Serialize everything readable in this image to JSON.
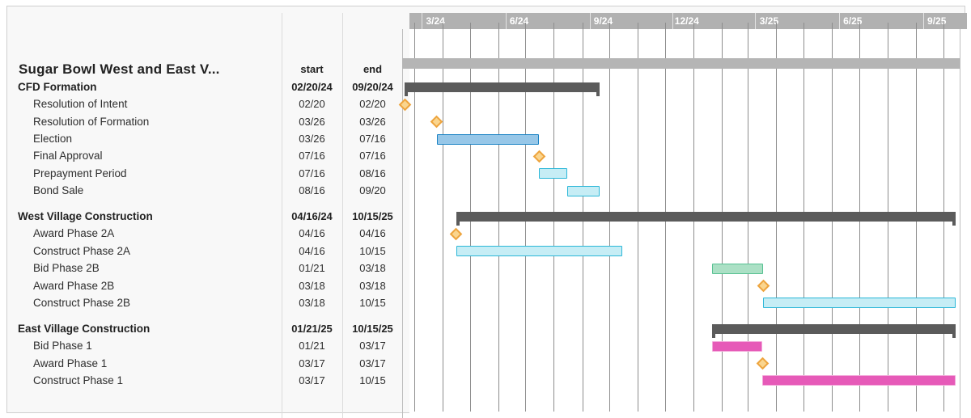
{
  "table": {
    "title": "Sugar Bowl West and East V...",
    "columns": {
      "start": "start",
      "end": "end"
    }
  },
  "colors": {
    "band": "#b1b1b1",
    "gridline": "#8d8d8d",
    "project_bar": "#b5b5b5",
    "summary_bar": "#5b5b5b",
    "milestone_fill": "#fad58e",
    "milestone_border": "#eda43e",
    "blue_fill": "#97c7e8",
    "blue_border": "#1d84c5",
    "cyan_fill": "#c6edf5",
    "cyan_border": "#2bb7d8",
    "green_fill": "#abe0c5",
    "green_border": "#57c192",
    "pink_fill": "#e65ab8",
    "pink_border": "#f3a8da"
  },
  "chart_data": {
    "type": "gantt",
    "title": "Sugar Bowl West and East V...",
    "timeline": {
      "quarter_labels": [
        "3/24",
        "6/24",
        "9/24",
        "12/24",
        "3/25",
        "6/25",
        "9/25"
      ],
      "gridlines": "monthly",
      "range": {
        "start": "2024-02-17",
        "end": "2025-10-19"
      }
    },
    "project": {
      "start_date": "2024-02-17",
      "end_date": "2025-10-19"
    },
    "sections": [
      {
        "label": "CFD Formation",
        "start": "02/20/24",
        "end": "09/20/24",
        "start_date": "2024-02-20",
        "end_date": "2024-09-20",
        "tasks": [
          {
            "label": "Resolution of Intent",
            "start": "02/20",
            "end": "02/20",
            "start_date": "2024-02-20",
            "end_date": "2024-02-20",
            "kind": "milestone"
          },
          {
            "label": "Resolution of Formation",
            "start": "03/26",
            "end": "03/26",
            "start_date": "2024-03-26",
            "end_date": "2024-03-26",
            "kind": "milestone"
          },
          {
            "label": "Election",
            "start": "03/26",
            "end": "07/16",
            "start_date": "2024-03-26",
            "end_date": "2024-07-16",
            "kind": "bar",
            "color": "blue"
          },
          {
            "label": "Final Approval",
            "start": "07/16",
            "end": "07/16",
            "start_date": "2024-07-16",
            "end_date": "2024-07-16",
            "kind": "milestone"
          },
          {
            "label": "Prepayment Period",
            "start": "07/16",
            "end": "08/16",
            "start_date": "2024-07-16",
            "end_date": "2024-08-16",
            "kind": "bar",
            "color": "cyan"
          },
          {
            "label": "Bond Sale",
            "start": "08/16",
            "end": "09/20",
            "start_date": "2024-08-16",
            "end_date": "2024-09-20",
            "kind": "bar",
            "color": "cyan"
          }
        ]
      },
      {
        "label": "West Village Construction",
        "start": "04/16/24",
        "end": "10/15/25",
        "start_date": "2024-04-16",
        "end_date": "2025-10-15",
        "tasks": [
          {
            "label": "Award Phase 2A",
            "start": "04/16",
            "end": "04/16",
            "start_date": "2024-04-16",
            "end_date": "2024-04-16",
            "kind": "milestone"
          },
          {
            "label": "Construct Phase 2A",
            "start": "04/16",
            "end": "10/15",
            "start_date": "2024-04-16",
            "end_date": "2024-10-15",
            "kind": "bar",
            "color": "cyan"
          },
          {
            "label": "Bid Phase 2B",
            "start": "01/21",
            "end": "03/18",
            "start_date": "2025-01-21",
            "end_date": "2025-03-18",
            "kind": "bar",
            "color": "green"
          },
          {
            "label": "Award Phase 2B",
            "start": "03/18",
            "end": "03/18",
            "start_date": "2025-03-18",
            "end_date": "2025-03-18",
            "kind": "milestone"
          },
          {
            "label": "Construct Phase 2B",
            "start": "03/18",
            "end": "10/15",
            "start_date": "2025-03-18",
            "end_date": "2025-10-15",
            "kind": "bar",
            "color": "cyan"
          }
        ]
      },
      {
        "label": "East Village Construction",
        "start": "01/21/25",
        "end": "10/15/25",
        "start_date": "2025-01-21",
        "end_date": "2025-10-15",
        "tasks": [
          {
            "label": "Bid Phase 1",
            "start": "01/21",
            "end": "03/17",
            "start_date": "2025-01-21",
            "end_date": "2025-03-17",
            "kind": "bar",
            "color": "pink"
          },
          {
            "label": "Award Phase 1",
            "start": "03/17",
            "end": "03/17",
            "start_date": "2025-03-17",
            "end_date": "2025-03-17",
            "kind": "milestone"
          },
          {
            "label": "Construct Phase 1",
            "start": "03/17",
            "end": "10/15",
            "start_date": "2025-03-17",
            "end_date": "2025-10-15",
            "kind": "bar",
            "color": "pink"
          }
        ]
      }
    ]
  }
}
